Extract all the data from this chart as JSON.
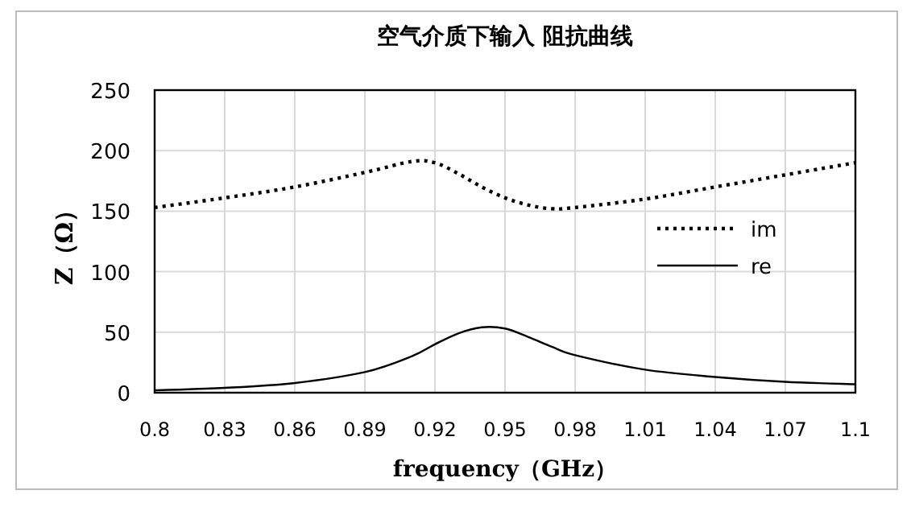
{
  "chart_data": {
    "type": "line",
    "title": "空气介质下输入 阻抗曲线",
    "xlabel": "frequency（GHz）",
    "ylabel": "Z（Ω）",
    "x": [
      0.8,
      0.83,
      0.86,
      0.89,
      0.91,
      0.92,
      0.93,
      0.94,
      0.95,
      0.96,
      0.97,
      0.98,
      1.01,
      1.04,
      1.07,
      1.1
    ],
    "series": [
      {
        "name": "im",
        "color": "#000000",
        "line_style": "dotted",
        "values": [
          153,
          161,
          170,
          182,
          191,
          190,
          181,
          170,
          161,
          155,
          152,
          153,
          160,
          170,
          180,
          190
        ]
      },
      {
        "name": "re",
        "color": "#000000",
        "line_style": "solid",
        "values": [
          2,
          4,
          8,
          17,
          30,
          40,
          49,
          54,
          53,
          46,
          38,
          31,
          19,
          13,
          9,
          7
        ]
      }
    ],
    "xlim": [
      0.8,
      1.1
    ],
    "xticks": [
      0.8,
      0.83,
      0.86,
      0.89,
      0.92,
      0.95,
      0.98,
      1.01,
      1.04,
      1.07,
      1.1
    ],
    "ylim": [
      0,
      250
    ],
    "yticks": [
      0,
      50,
      100,
      150,
      200,
      250
    ],
    "grid": true,
    "legend": "right"
  }
}
